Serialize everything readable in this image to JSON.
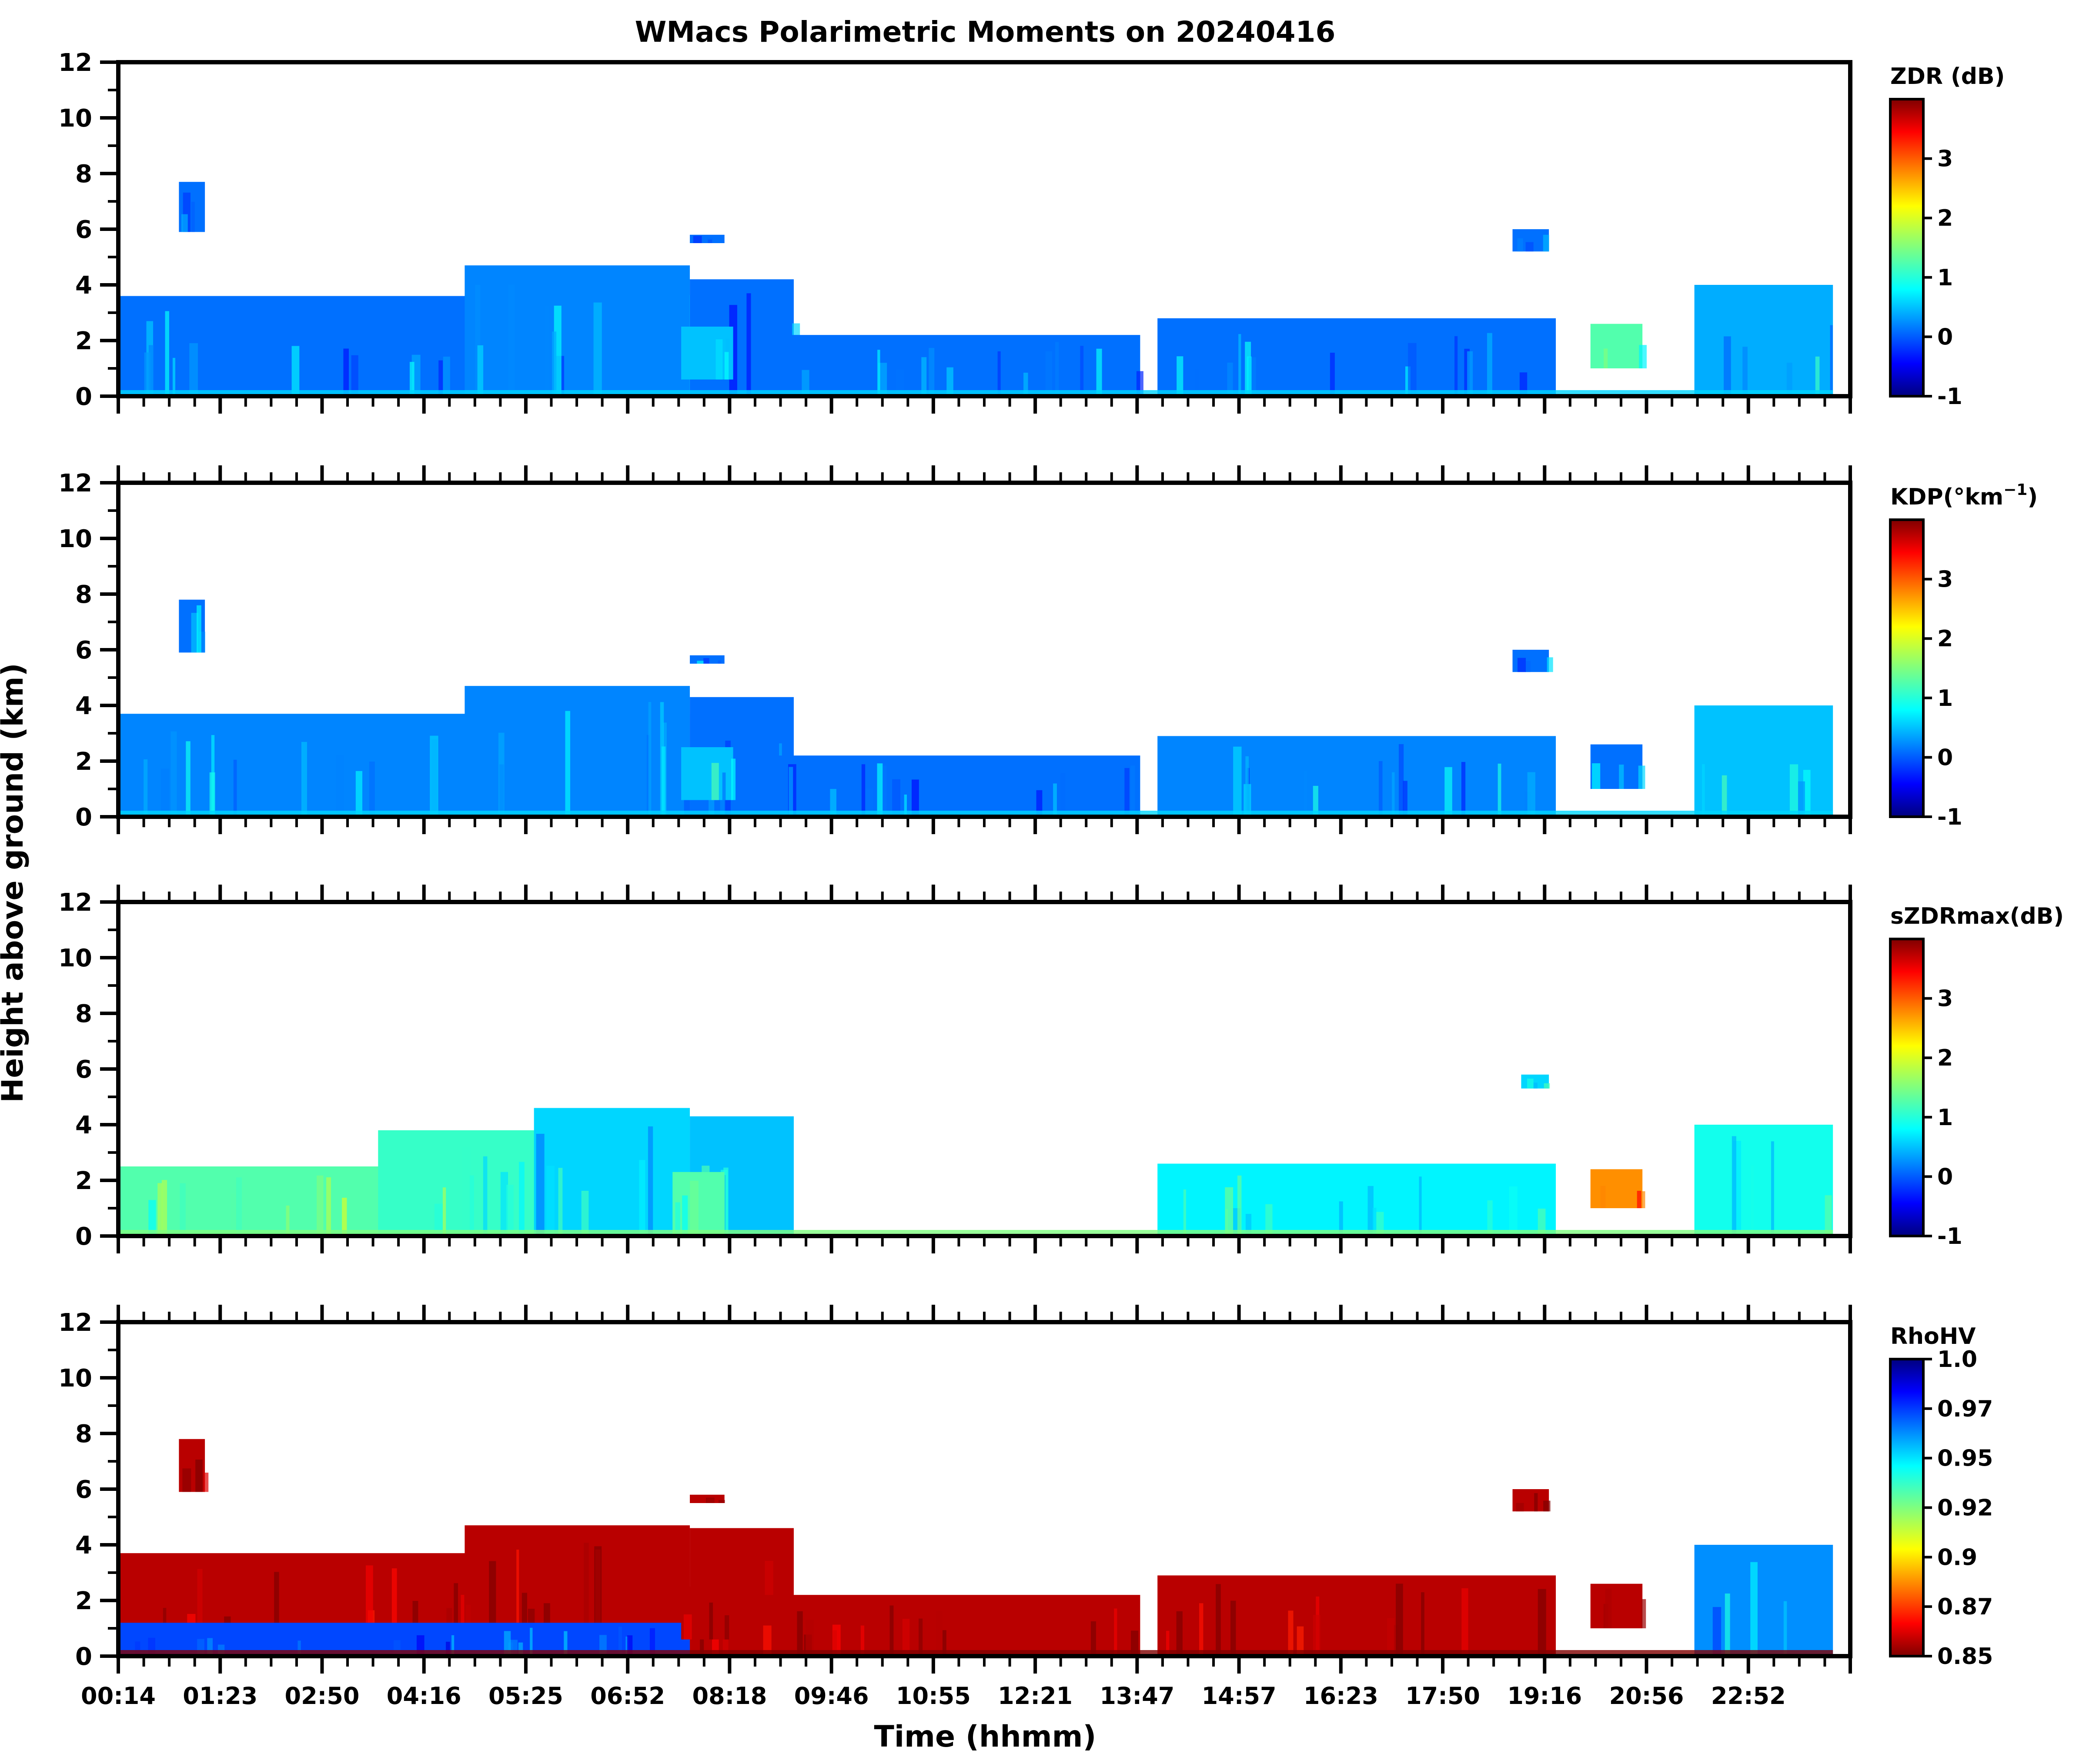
{
  "chart_data": [
    {
      "type": "heatmap",
      "title": "WMacs Polarimetric Moments on 20240416",
      "ylabel": "Height above ground (km)",
      "xlabel": "Time (hhmm)",
      "ylim": [
        0,
        12
      ],
      "yticks": [
        "0",
        "2",
        "4",
        "6",
        "8",
        "10",
        "12"
      ],
      "xticks": [
        "00:14",
        "01:23",
        "02:50",
        "04:16",
        "05:25",
        "06:52",
        "08:18",
        "09:46",
        "10:55",
        "12:21",
        "13:47",
        "14:57",
        "16:23",
        "17:50",
        "19:16",
        "20:56",
        "22:52"
      ],
      "colormap": "jet",
      "panels": [
        {
          "id": "zdr",
          "colorbar_label": "ZDR (dB)",
          "colorbar_ticks": [
            "3",
            "2",
            "1",
            "0",
            "-1"
          ],
          "colorbar_reversed": false,
          "fill_level": 0.22,
          "regions": [
            {
              "x0": 0.0,
              "x1": 0.33,
              "y0": 0,
              "y1": 3.6,
              "level": 0.22
            },
            {
              "x0": 0.2,
              "x1": 0.33,
              "y0": 0,
              "y1": 4.7,
              "level": 0.24
            },
            {
              "x0": 0.33,
              "x1": 0.39,
              "y0": 0,
              "y1": 4.2,
              "level": 0.22
            },
            {
              "x0": 0.035,
              "x1": 0.05,
              "y0": 5.9,
              "y1": 7.7,
              "level": 0.22
            },
            {
              "x0": 0.33,
              "x1": 0.35,
              "y0": 5.5,
              "y1": 5.8,
              "level": 0.22
            },
            {
              "x0": 0.325,
              "x1": 0.355,
              "y0": 0.6,
              "y1": 2.5,
              "level": 0.3
            },
            {
              "x0": 0.37,
              "x1": 0.59,
              "y0": 0,
              "y1": 2.2,
              "level": 0.22
            },
            {
              "x0": 0.6,
              "x1": 0.83,
              "y0": 0,
              "y1": 2.8,
              "level": 0.22
            },
            {
              "x0": 0.91,
              "x1": 0.99,
              "y0": 0,
              "y1": 4.0,
              "level": 0.28
            },
            {
              "x0": 0.805,
              "x1": 0.826,
              "y0": 5.2,
              "y1": 6.0,
              "level": 0.22
            },
            {
              "x0": 0.85,
              "x1": 0.88,
              "y0": 1.0,
              "y1": 2.6,
              "level": 0.45
            }
          ]
        },
        {
          "id": "kdp",
          "colorbar_label": "KDP(°km",
          "colorbar_label_sup": "−1",
          "colorbar_label_end": ")",
          "colorbar_ticks": [
            "3",
            "2",
            "1",
            "0",
            "-1"
          ],
          "colorbar_reversed": false,
          "fill_level": 0.22,
          "regions": [
            {
              "x0": 0.0,
              "x1": 0.33,
              "y0": 0,
              "y1": 3.7,
              "level": 0.24
            },
            {
              "x0": 0.2,
              "x1": 0.33,
              "y0": 0,
              "y1": 4.7,
              "level": 0.24
            },
            {
              "x0": 0.33,
              "x1": 0.39,
              "y0": 0,
              "y1": 4.3,
              "level": 0.22
            },
            {
              "x0": 0.035,
              "x1": 0.05,
              "y0": 5.9,
              "y1": 7.8,
              "level": 0.22
            },
            {
              "x0": 0.33,
              "x1": 0.35,
              "y0": 5.5,
              "y1": 5.8,
              "level": 0.22
            },
            {
              "x0": 0.325,
              "x1": 0.355,
              "y0": 0.6,
              "y1": 2.5,
              "level": 0.3
            },
            {
              "x0": 0.37,
              "x1": 0.59,
              "y0": 0,
              "y1": 2.2,
              "level": 0.22
            },
            {
              "x0": 0.6,
              "x1": 0.83,
              "y0": 0,
              "y1": 2.9,
              "level": 0.24
            },
            {
              "x0": 0.91,
              "x1": 0.99,
              "y0": 0,
              "y1": 4.0,
              "level": 0.3
            },
            {
              "x0": 0.805,
              "x1": 0.826,
              "y0": 5.2,
              "y1": 6.0,
              "level": 0.22
            },
            {
              "x0": 0.85,
              "x1": 0.88,
              "y0": 1.0,
              "y1": 2.6,
              "level": 0.22
            }
          ]
        },
        {
          "id": "szdrmax",
          "colorbar_label": "sZDRmax(dB)",
          "colorbar_ticks": [
            "3",
            "2",
            "1",
            "0",
            "-1"
          ],
          "colorbar_reversed": false,
          "fill_level": 0.4,
          "regions": [
            {
              "x0": 0.0,
              "x1": 0.33,
              "y0": 0,
              "y1": 2.5,
              "level": 0.45
            },
            {
              "x0": 0.15,
              "x1": 0.33,
              "y0": 0,
              "y1": 3.8,
              "level": 0.42
            },
            {
              "x0": 0.24,
              "x1": 0.33,
              "y0": 0,
              "y1": 4.6,
              "level": 0.32
            },
            {
              "x0": 0.33,
              "x1": 0.39,
              "y0": 0,
              "y1": 4.3,
              "level": 0.3
            },
            {
              "x0": 0.32,
              "x1": 0.35,
              "y0": 0,
              "y1": 2.3,
              "level": 0.45
            },
            {
              "x0": 0.6,
              "x1": 0.83,
              "y0": 0,
              "y1": 2.6,
              "level": 0.35
            },
            {
              "x0": 0.91,
              "x1": 0.99,
              "y0": 0,
              "y1": 4.0,
              "level": 0.38
            },
            {
              "x0": 0.81,
              "x1": 0.826,
              "y0": 5.3,
              "y1": 5.8,
              "level": 0.32
            },
            {
              "x0": 0.85,
              "x1": 0.88,
              "y0": 1.0,
              "y1": 2.4,
              "level": 0.75
            }
          ]
        },
        {
          "id": "rhohv",
          "colorbar_label": "RhoHV",
          "colorbar_ticks": [
            "1.0",
            "0.97",
            "0.95",
            "0.92",
            "0.9",
            "0.87",
            "0.85"
          ],
          "colorbar_reversed": true,
          "fill_level": 0.95,
          "regions": [
            {
              "x0": 0.0,
              "x1": 0.33,
              "y0": 0,
              "y1": 3.7,
              "level": 0.95
            },
            {
              "x0": 0.2,
              "x1": 0.33,
              "y0": 0,
              "y1": 4.7,
              "level": 0.95
            },
            {
              "x0": 0.33,
              "x1": 0.39,
              "y0": 0,
              "y1": 4.6,
              "level": 0.95
            },
            {
              "x0": 0.0,
              "x1": 0.33,
              "y0": 0,
              "y1": 1.2,
              "level": 0.18
            },
            {
              "x0": 0.035,
              "x1": 0.05,
              "y0": 5.9,
              "y1": 7.8,
              "level": 0.95
            },
            {
              "x0": 0.33,
              "x1": 0.35,
              "y0": 5.5,
              "y1": 5.8,
              "level": 0.95
            },
            {
              "x0": 0.325,
              "x1": 0.355,
              "y0": 0.6,
              "y1": 2.5,
              "level": 0.95
            },
            {
              "x0": 0.37,
              "x1": 0.59,
              "y0": 0,
              "y1": 2.2,
              "level": 0.95
            },
            {
              "x0": 0.6,
              "x1": 0.83,
              "y0": 0,
              "y1": 2.9,
              "level": 0.95
            },
            {
              "x0": 0.91,
              "x1": 0.99,
              "y0": 0,
              "y1": 4.0,
              "level": 0.25
            },
            {
              "x0": 0.805,
              "x1": 0.826,
              "y0": 5.2,
              "y1": 6.0,
              "level": 0.95
            },
            {
              "x0": 0.85,
              "x1": 0.88,
              "y0": 1.0,
              "y1": 2.6,
              "level": 0.95
            }
          ]
        }
      ]
    }
  ]
}
